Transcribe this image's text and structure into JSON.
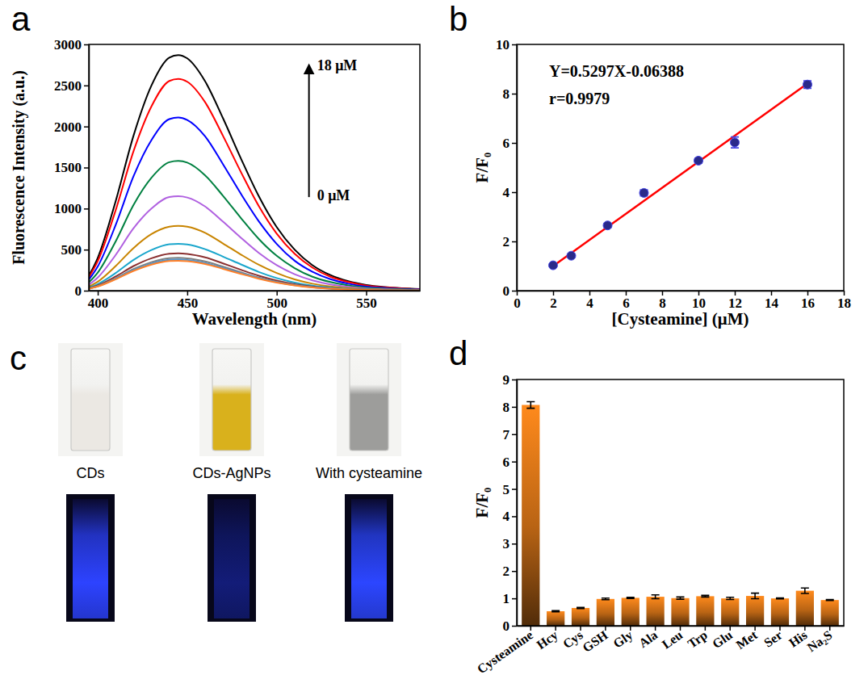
{
  "chart_data": [
    {
      "type": "line",
      "title": "a",
      "x_label": "Wavelength (nm)",
      "y_label": "Fluorescence Intensity (a.u.)",
      "annotations": [
        "18 μM",
        "0 μM"
      ],
      "x": [
        395,
        400,
        410,
        420,
        430,
        440,
        445,
        450,
        460,
        470,
        480,
        490,
        500,
        510,
        520,
        530,
        540,
        550,
        560,
        570,
        580
      ],
      "series": [
        {
          "color": "#000000",
          "values": [
            180,
            400,
            1090,
            1890,
            2500,
            2840,
            2870,
            2830,
            2550,
            2100,
            1610,
            1150,
            775,
            500,
            310,
            190,
            115,
            70,
            45,
            30,
            20
          ]
        },
        {
          "color": "#ff0000",
          "values": [
            163,
            360,
            980,
            1700,
            2245,
            2555,
            2580,
            2545,
            2295,
            1885,
            1445,
            1030,
            695,
            450,
            280,
            170,
            105,
            62,
            41,
            26,
            18
          ]
        },
        {
          "color": "#0000ff",
          "values": [
            133,
            295,
            800,
            1395,
            1835,
            2090,
            2110,
            2080,
            1880,
            1540,
            1180,
            845,
            570,
            365,
            230,
            140,
            85,
            50,
            34,
            21,
            15
          ]
        },
        {
          "color": "#008040",
          "values": [
            100,
            220,
            600,
            1045,
            1375,
            1565,
            1580,
            1560,
            1405,
            1155,
            885,
            630,
            425,
            275,
            170,
            105,
            63,
            38,
            25,
            16,
            11
          ]
        },
        {
          "color": "#b060e0",
          "values": [
            72,
            160,
            435,
            760,
            1000,
            1140,
            1150,
            1135,
            1025,
            840,
            645,
            460,
            310,
            200,
            125,
            76,
            46,
            28,
            18,
            12,
            8
          ]
        },
        {
          "color": "#c88400",
          "values": [
            50,
            110,
            300,
            520,
            690,
            780,
            790,
            780,
            705,
            575,
            440,
            315,
            215,
            137,
            85,
            52,
            32,
            19,
            13,
            8,
            6
          ]
        },
        {
          "color": "#1aa6cc",
          "values": [
            36,
            80,
            215,
            375,
            495,
            565,
            570,
            562,
            505,
            415,
            320,
            228,
            154,
            99,
            62,
            38,
            23,
            14,
            9,
            6,
            4
          ]
        },
        {
          "color": "#8b3030",
          "values": [
            29,
            64,
            173,
            300,
            395,
            450,
            455,
            448,
            405,
            332,
            255,
            182,
            123,
            79,
            49,
            30,
            18,
            11,
            7,
            5,
            3
          ]
        },
        {
          "color": "#7f7f7f",
          "values": [
            25,
            56,
            152,
            264,
            348,
            396,
            400,
            394,
            356,
            292,
            224,
            160,
            108,
            70,
            43,
            26,
            16,
            10,
            6,
            4,
            3
          ]
        },
        {
          "color": "#4f94cd",
          "values": [
            24,
            53,
            144,
            251,
            331,
            376,
            380,
            375,
            338,
            277,
            213,
            152,
            103,
            66,
            41,
            25,
            15,
            9,
            6,
            4,
            3
          ]
        },
        {
          "color": "#ff7f27",
          "values": [
            23,
            51,
            139,
            241,
            318,
            361,
            365,
            360,
            325,
            266,
            204,
            146,
            99,
            64,
            39,
            24,
            15,
            9,
            6,
            4,
            3
          ]
        }
      ],
      "xlim": [
        395,
        580
      ],
      "xticks": [
        400,
        450,
        500,
        550
      ],
      "ylim": [
        0,
        3000
      ],
      "yticks": [
        0,
        500,
        1000,
        1500,
        2000,
        2500,
        3000
      ]
    },
    {
      "type": "scatter",
      "title": "b",
      "x_label": "[Cysteamine] (μM)",
      "y_label": "F/F₀",
      "annotations": [
        "Y=0.5297X-0.06388",
        "r=0.9979"
      ],
      "series": [
        {
          "type": "scatter",
          "marker": "circle",
          "color": "#2a2a8a",
          "x": [
            2,
            3,
            5,
            7,
            10,
            12,
            16
          ],
          "values": [
            1.03,
            1.42,
            2.65,
            3.97,
            5.28,
            6.02,
            8.37
          ],
          "errors": [
            0.05,
            0.06,
            0.08,
            0.12,
            0.1,
            0.22,
            0.15
          ]
        },
        {
          "type": "line",
          "line_style": "solid",
          "color": "#ff0000",
          "x": [
            2,
            16
          ],
          "values": [
            1.0,
            8.41
          ]
        }
      ],
      "xlim": [
        0,
        18
      ],
      "xticks": [
        0,
        2,
        4,
        6,
        8,
        10,
        12,
        14,
        16,
        18
      ],
      "ylim": [
        0,
        10
      ],
      "yticks": [
        0,
        2,
        4,
        6,
        8,
        10
      ]
    },
    {
      "type": "photo",
      "title": "c",
      "categories": [
        "CDs",
        "CDs-AgNPs",
        "With cysteamine"
      ],
      "series": [
        {
          "colors": [
            "#ebe8e3",
            "#d9b11c",
            "#9d9d9b"
          ]
        },
        {
          "colors": [
            "#2d43ff",
            "#131c78",
            "#2c46ff"
          ]
        }
      ]
    },
    {
      "type": "bar",
      "title": "d",
      "y_label": "F/F₀",
      "categories": [
        "Cysteamine",
        "Hcy",
        "Cys",
        "GSH",
        "Gly",
        "Ala",
        "Leu",
        "Trp",
        "Glu",
        "Met",
        "Ser",
        "His",
        "Na₂S"
      ],
      "values": [
        8.07,
        0.53,
        0.65,
        0.98,
        1.02,
        1.06,
        1.01,
        1.08,
        1.0,
        1.09,
        1.0,
        1.28,
        0.94
      ],
      "errors": [
        0.12,
        0.02,
        0.02,
        0.03,
        0.02,
        0.07,
        0.04,
        0.03,
        0.04,
        0.1,
        0.02,
        0.1,
        0.02
      ],
      "color": "#ff8a1c",
      "ylim": [
        0,
        9
      ],
      "yticks": [
        0,
        1,
        2,
        3,
        4,
        5,
        6,
        7,
        8,
        9
      ]
    }
  ]
}
